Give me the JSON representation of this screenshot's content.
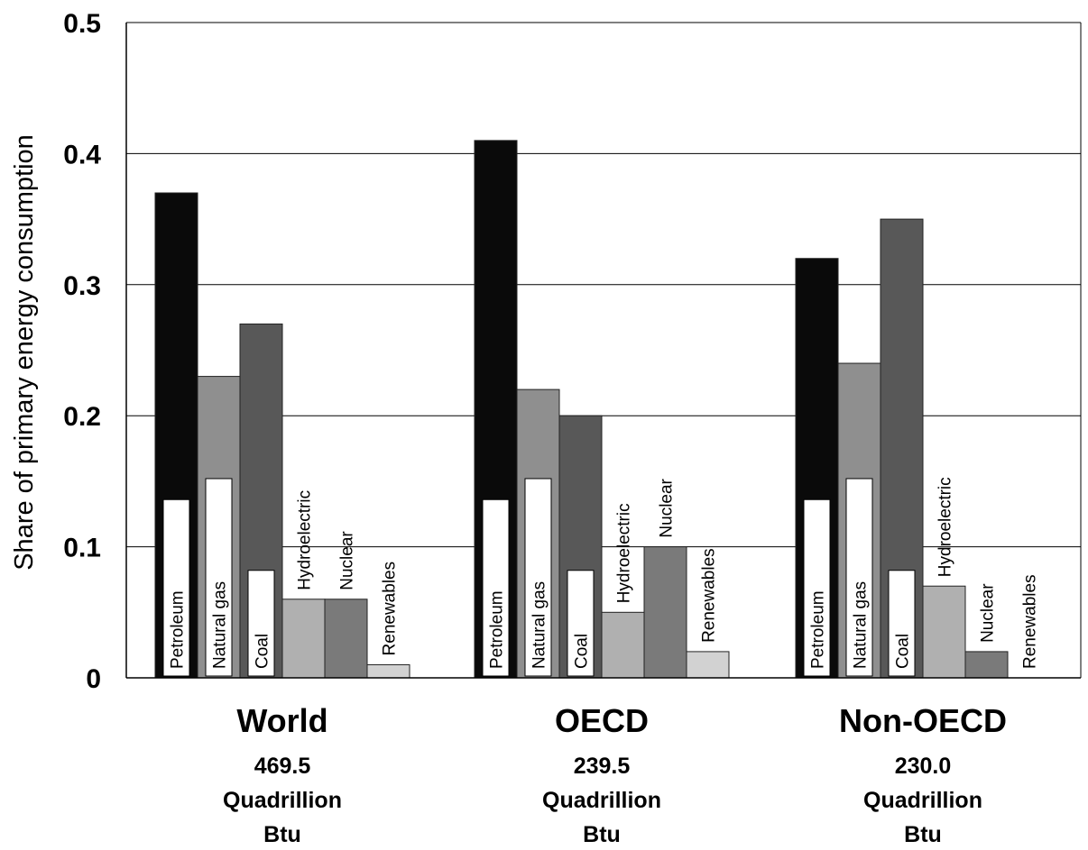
{
  "chart_data": {
    "type": "bar",
    "title": "",
    "xlabel": "",
    "ylabel": "Share of primary energy consumption",
    "ylim": [
      0,
      0.5
    ],
    "yticks": [
      "0",
      "0.1",
      "0.2",
      "0.3",
      "0.4",
      "0.5"
    ],
    "grid": true,
    "categories": [
      "World",
      "OECD",
      "Non-OECD"
    ],
    "category_totals": [
      [
        "469.5",
        "Quadrillion",
        "Btu"
      ],
      [
        "239.5",
        "Quadrillion",
        "Btu"
      ],
      [
        "230.0",
        "Quadrillion",
        "Btu"
      ]
    ],
    "series": [
      {
        "name": "Petroleum",
        "color": "#0a0a0a",
        "values": [
          0.37,
          0.41,
          0.32
        ]
      },
      {
        "name": "Natural gas",
        "color": "#8f8f8f",
        "values": [
          0.23,
          0.22,
          0.24
        ]
      },
      {
        "name": "Coal",
        "color": "#585858",
        "values": [
          0.27,
          0.2,
          0.35
        ]
      },
      {
        "name": "Hydroelectric",
        "color": "#b0b0b0",
        "values": [
          0.06,
          0.05,
          0.07
        ]
      },
      {
        "name": "Nuclear",
        "color": "#7a7a7a",
        "values": [
          0.06,
          0.1,
          0.02
        ]
      },
      {
        "name": "Renewables",
        "color": "#d2d2d2",
        "values": [
          0.01,
          0.02,
          0.0
        ]
      }
    ]
  }
}
